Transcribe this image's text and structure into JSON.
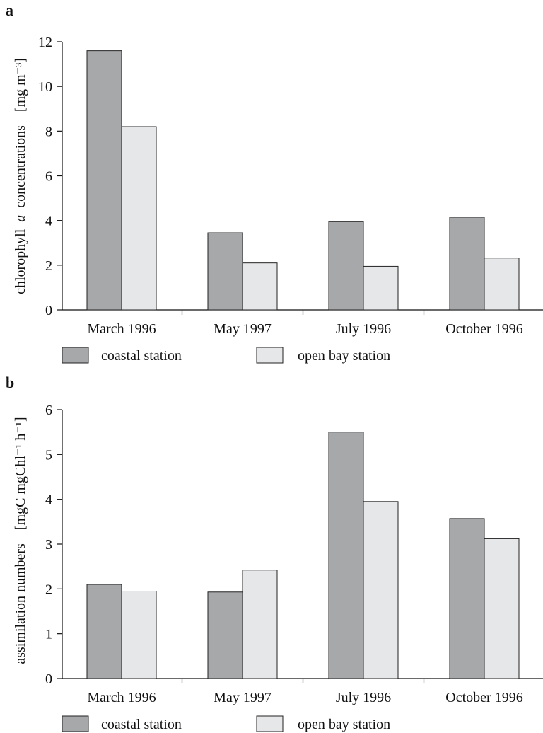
{
  "colors": {
    "coastal": "#a7a8aa",
    "open_bay": "#e6e7e8"
  },
  "panels": [
    {
      "letter": "a",
      "ylabel_main": "chlorophyll",
      "ylabel_italic": "a",
      "ylabel_rest": "concentrations",
      "ylabel_units": "[mg m⁻³]"
    },
    {
      "letter": "b",
      "ylabel_main": "assimilation numbers",
      "ylabel_units": "[mgC mgChl⁻¹ h⁻¹]"
    }
  ],
  "legend": {
    "coastal": "coastal station",
    "open_bay": "open bay station"
  },
  "chart_data": [
    {
      "type": "bar",
      "categories": [
        "March 1996",
        "May 1997",
        "July 1996",
        "October 1996"
      ],
      "series": [
        {
          "name": "coastal station",
          "values": [
            11.6,
            3.45,
            3.95,
            4.15
          ]
        },
        {
          "name": "open bay station",
          "values": [
            8.2,
            2.1,
            1.95,
            2.32
          ]
        }
      ],
      "ylim": [
        0,
        12
      ],
      "yticks": [
        "0",
        "2",
        "4",
        "6",
        "8",
        "10",
        "12"
      ],
      "ylabel": "chlorophyll a concentrations [mg m⁻³]"
    },
    {
      "type": "bar",
      "categories": [
        "March 1996",
        "May 1997",
        "July 1996",
        "October 1996"
      ],
      "series": [
        {
          "name": "coastal station",
          "values": [
            2.1,
            1.93,
            5.5,
            3.57
          ]
        },
        {
          "name": "open bay station",
          "values": [
            1.95,
            2.42,
            3.95,
            3.12
          ]
        }
      ],
      "ylim": [
        0,
        6
      ],
      "yticks": [
        "0",
        "1",
        "2",
        "3",
        "4",
        "5",
        "6"
      ],
      "ylabel": "assimilation numbers [mgC mgChl⁻¹ h⁻¹]"
    }
  ]
}
